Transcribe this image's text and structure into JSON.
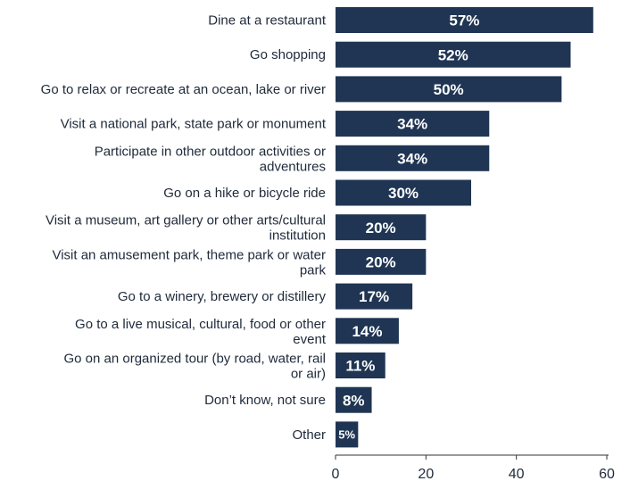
{
  "chart_data": {
    "type": "bar",
    "orientation": "horizontal",
    "title": "",
    "xlabel": "",
    "ylabel": "",
    "xlim": [
      0,
      60
    ],
    "x_ticks": [
      "0",
      "20",
      "40",
      "60"
    ],
    "grid": false,
    "legend": "none",
    "bar_color": "#1f3553",
    "categories": [
      [
        "Dine at a restaurant"
      ],
      [
        "Go shopping"
      ],
      [
        "Go to relax or recreate at an ocean, lake or river"
      ],
      [
        "Visit a national park, state park or monument"
      ],
      [
        "Participate in other outdoor activities or",
        "adventures"
      ],
      [
        "Go on a hike or bicycle ride"
      ],
      [
        "Visit a museum, art gallery or other arts/cultural",
        "institution"
      ],
      [
        "Visit an amusement park, theme park or water",
        "park"
      ],
      [
        "Go to a winery, brewery or distillery"
      ],
      [
        "Go to a live musical, cultural, food or other",
        "event"
      ],
      [
        "Go on an organized tour (by road, water, rail",
        "or air)"
      ],
      [
        "Don’t know, not sure"
      ],
      [
        "Other"
      ]
    ],
    "values": [
      57,
      52,
      50,
      34,
      34,
      30,
      20,
      20,
      17,
      14,
      11,
      8,
      5
    ],
    "data_labels": [
      "57%",
      "52%",
      "50%",
      "34%",
      "34%",
      "30%",
      "20%",
      "20%",
      "17%",
      "14%",
      "11%",
      "8%",
      "5%"
    ]
  }
}
